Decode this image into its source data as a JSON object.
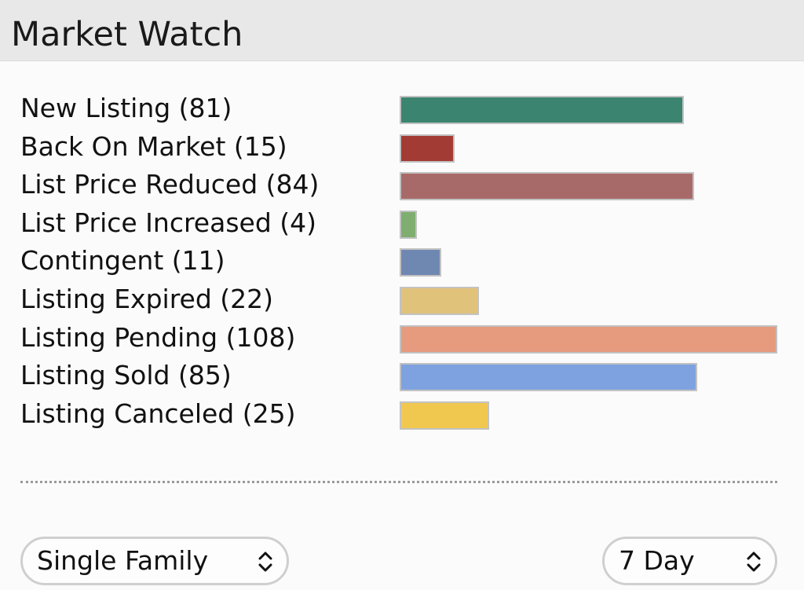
{
  "header": {
    "title": "Market Watch"
  },
  "chart_data": {
    "type": "bar",
    "orientation": "horizontal",
    "categories": [
      "New Listing (81)",
      "Back On Market (15)",
      "List Price Reduced (84)",
      "List Price Increased (4)",
      "Contingent (11)",
      "Listing Expired (22)",
      "Listing Pending (108)",
      "Listing Sold (85)",
      "Listing Canceled (25)"
    ],
    "values": [
      81,
      15,
      84,
      4,
      11,
      22,
      108,
      85,
      25
    ],
    "colors": [
      "#3b8570",
      "#a33b35",
      "#a86a69",
      "#7fae70",
      "#6f88b2",
      "#e0c27a",
      "#e69a7e",
      "#7ea2e0",
      "#f1c84f"
    ],
    "xlim": [
      0,
      108
    ],
    "grid": false,
    "title": "",
    "xlabel": "",
    "ylabel": ""
  },
  "filters": {
    "property_type": {
      "value": "Single Family"
    },
    "period": {
      "value": "7 Day"
    }
  }
}
